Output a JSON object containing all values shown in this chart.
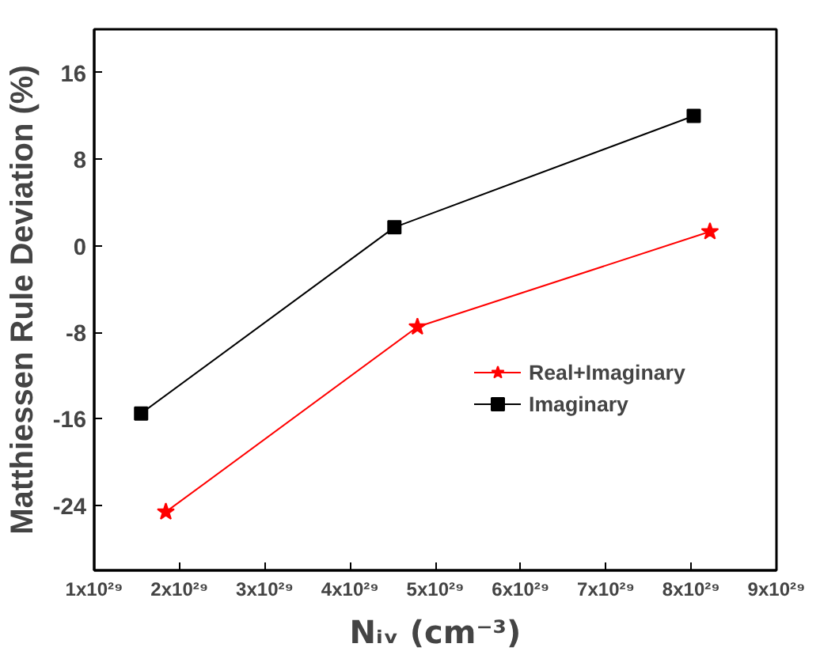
{
  "chart_data": {
    "type": "line",
    "xlabel": "Nᵢᵥ (cm⁻³)",
    "ylabel": "Matthiessen Rule Deviation (%)",
    "xlim": [
      1e+29,
      9e+29
    ],
    "ylim": [
      -30,
      20
    ],
    "xticks": [
      {
        "value": 1e+29,
        "label": "1x10²⁹"
      },
      {
        "value": 2e+29,
        "label": "2x10²⁹"
      },
      {
        "value": 3e+29,
        "label": "3x10²⁹"
      },
      {
        "value": 4e+29,
        "label": "4x10²⁹"
      },
      {
        "value": 5e+29,
        "label": "5x10²⁹"
      },
      {
        "value": 6e+29,
        "label": "6x10²⁹"
      },
      {
        "value": 7e+29,
        "label": "7x10²⁹"
      },
      {
        "value": 8e+29,
        "label": "8x10²⁹"
      },
      {
        "value": 9e+29,
        "label": "9x10²⁹"
      }
    ],
    "yticks": [
      -24,
      -16,
      -8,
      0,
      8,
      16
    ],
    "grid": false,
    "legend": "right",
    "series": [
      {
        "name": "Real+Imaginary",
        "color": "#ff0000",
        "marker": "star",
        "x": [
          1.84e+29,
          4.79e+29,
          8.22e+29
        ],
        "values": [
          -24.6,
          -7.5,
          1.3
        ]
      },
      {
        "name": "Imaginary",
        "color": "#000000",
        "marker": "square",
        "x": [
          1.55e+29,
          4.52e+29,
          8.03e+29
        ],
        "values": [
          -15.5,
          1.7,
          12.0
        ]
      }
    ]
  }
}
